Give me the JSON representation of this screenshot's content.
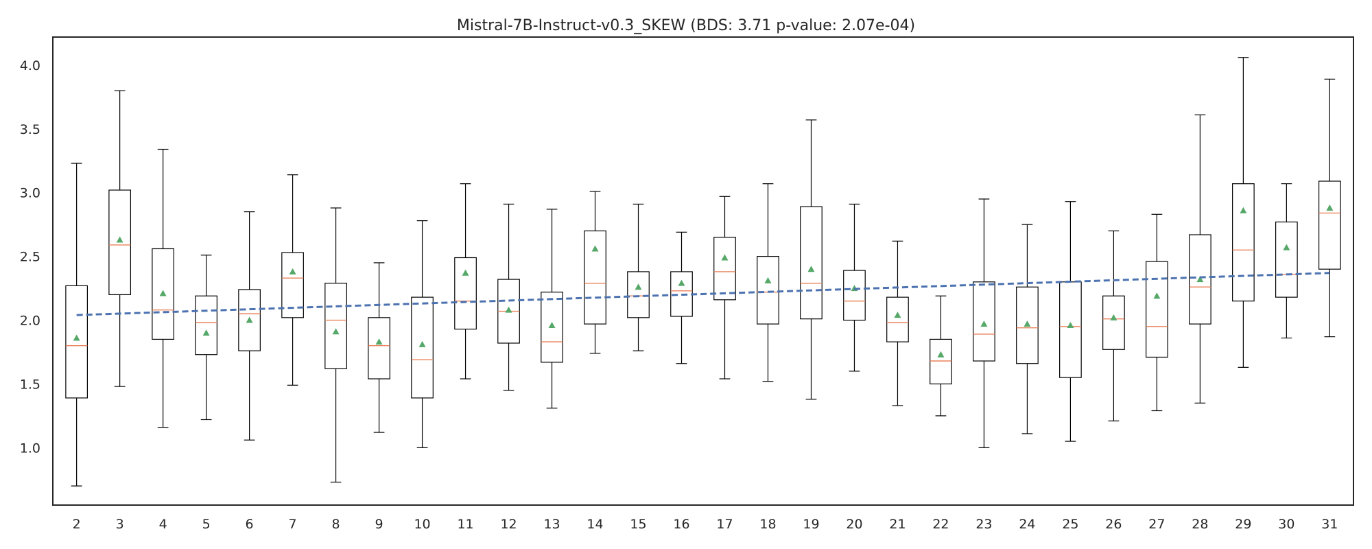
{
  "chart_data": {
    "type": "box",
    "title": "Mistral-7B-Instruct-v0.3_SKEW (BDS: 3.71 p-value: 2.07e-04)",
    "xlabel": "",
    "ylabel": "",
    "categories": [
      "2",
      "3",
      "4",
      "5",
      "6",
      "7",
      "8",
      "9",
      "10",
      "11",
      "12",
      "13",
      "14",
      "15",
      "16",
      "17",
      "18",
      "19",
      "20",
      "21",
      "22",
      "23",
      "24",
      "25",
      "26",
      "27",
      "28",
      "29",
      "30",
      "31"
    ],
    "yticks": [
      "1.0",
      "1.5",
      "2.0",
      "2.5",
      "3.0",
      "3.5",
      "4.0"
    ],
    "ylim": [
      0.55,
      4.22
    ],
    "grid": false,
    "boxes": [
      {
        "whisker_low": 0.7,
        "q1": 1.39,
        "median": 1.8,
        "q3": 2.27,
        "whisker_high": 3.23,
        "mean": 1.86
      },
      {
        "whisker_low": 1.48,
        "q1": 2.2,
        "median": 2.59,
        "q3": 3.02,
        "whisker_high": 3.8,
        "mean": 2.63
      },
      {
        "whisker_low": 1.16,
        "q1": 1.85,
        "median": 2.08,
        "q3": 2.56,
        "whisker_high": 3.34,
        "mean": 2.21
      },
      {
        "whisker_low": 1.22,
        "q1": 1.73,
        "median": 1.98,
        "q3": 2.19,
        "whisker_high": 2.51,
        "mean": 1.9
      },
      {
        "whisker_low": 1.06,
        "q1": 1.76,
        "median": 2.05,
        "q3": 2.24,
        "whisker_high": 2.85,
        "mean": 2.0
      },
      {
        "whisker_low": 1.49,
        "q1": 2.02,
        "median": 2.33,
        "q3": 2.53,
        "whisker_high": 3.14,
        "mean": 2.38
      },
      {
        "whisker_low": 0.73,
        "q1": 1.62,
        "median": 2.0,
        "q3": 2.29,
        "whisker_high": 2.88,
        "mean": 1.91
      },
      {
        "whisker_low": 1.12,
        "q1": 1.54,
        "median": 1.8,
        "q3": 2.02,
        "whisker_high": 2.45,
        "mean": 1.83
      },
      {
        "whisker_low": 1.0,
        "q1": 1.39,
        "median": 1.69,
        "q3": 2.18,
        "whisker_high": 2.78,
        "mean": 1.81
      },
      {
        "whisker_low": 1.54,
        "q1": 1.93,
        "median": 2.15,
        "q3": 2.49,
        "whisker_high": 3.07,
        "mean": 2.37
      },
      {
        "whisker_low": 1.45,
        "q1": 1.82,
        "median": 2.07,
        "q3": 2.32,
        "whisker_high": 2.91,
        "mean": 2.08
      },
      {
        "whisker_low": 1.31,
        "q1": 1.67,
        "median": 1.83,
        "q3": 2.22,
        "whisker_high": 2.87,
        "mean": 1.96
      },
      {
        "whisker_low": 1.74,
        "q1": 1.97,
        "median": 2.29,
        "q3": 2.7,
        "whisker_high": 3.01,
        "mean": 2.56
      },
      {
        "whisker_low": 1.76,
        "q1": 2.02,
        "median": 2.19,
        "q3": 2.38,
        "whisker_high": 2.91,
        "mean": 2.26
      },
      {
        "whisker_low": 1.66,
        "q1": 2.03,
        "median": 2.23,
        "q3": 2.38,
        "whisker_high": 2.69,
        "mean": 2.29
      },
      {
        "whisker_low": 1.54,
        "q1": 2.16,
        "median": 2.38,
        "q3": 2.65,
        "whisker_high": 2.97,
        "mean": 2.49
      },
      {
        "whisker_low": 1.52,
        "q1": 1.97,
        "median": 2.22,
        "q3": 2.5,
        "whisker_high": 3.07,
        "mean": 2.31
      },
      {
        "whisker_low": 1.38,
        "q1": 2.01,
        "median": 2.29,
        "q3": 2.89,
        "whisker_high": 3.57,
        "mean": 2.4
      },
      {
        "whisker_low": 1.6,
        "q1": 2.0,
        "median": 2.15,
        "q3": 2.39,
        "whisker_high": 2.91,
        "mean": 2.25
      },
      {
        "whisker_low": 1.33,
        "q1": 1.83,
        "median": 1.98,
        "q3": 2.18,
        "whisker_high": 2.62,
        "mean": 2.04
      },
      {
        "whisker_low": 1.25,
        "q1": 1.5,
        "median": 1.68,
        "q3": 1.85,
        "whisker_high": 2.19,
        "mean": 1.73
      },
      {
        "whisker_low": 1.0,
        "q1": 1.68,
        "median": 1.89,
        "q3": 2.3,
        "whisker_high": 2.95,
        "mean": 1.97
      },
      {
        "whisker_low": 1.11,
        "q1": 1.66,
        "median": 1.94,
        "q3": 2.26,
        "whisker_high": 2.75,
        "mean": 1.97
      },
      {
        "whisker_low": 1.05,
        "q1": 1.55,
        "median": 1.95,
        "q3": 2.3,
        "whisker_high": 2.93,
        "mean": 1.96
      },
      {
        "whisker_low": 1.21,
        "q1": 1.77,
        "median": 2.01,
        "q3": 2.19,
        "whisker_high": 2.7,
        "mean": 2.02
      },
      {
        "whisker_low": 1.29,
        "q1": 1.71,
        "median": 1.95,
        "q3": 2.46,
        "whisker_high": 2.83,
        "mean": 2.19
      },
      {
        "whisker_low": 1.35,
        "q1": 1.97,
        "median": 2.26,
        "q3": 2.67,
        "whisker_high": 3.61,
        "mean": 2.32
      },
      {
        "whisker_low": 1.63,
        "q1": 2.15,
        "median": 2.55,
        "q3": 3.07,
        "whisker_high": 4.06,
        "mean": 2.86
      },
      {
        "whisker_low": 1.86,
        "q1": 2.18,
        "median": 2.36,
        "q3": 2.77,
        "whisker_high": 3.07,
        "mean": 2.57
      },
      {
        "whisker_low": 1.87,
        "q1": 2.4,
        "median": 2.84,
        "q3": 3.09,
        "whisker_high": 3.89,
        "mean": 2.88
      }
    ],
    "trend_line": {
      "start": 2.04,
      "end": 2.37
    },
    "colors": {
      "box": "#000000",
      "median": "#e8825a",
      "mean": "#55a868",
      "trend": "#4c72b0",
      "text": "#262626"
    }
  }
}
